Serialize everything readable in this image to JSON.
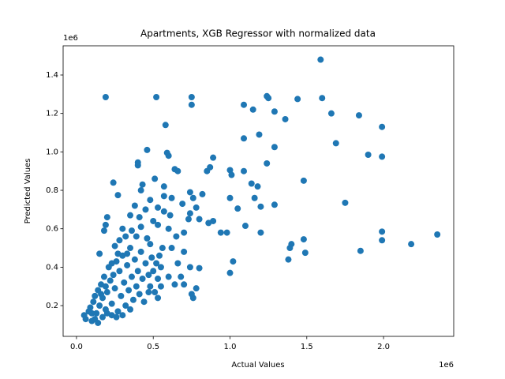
{
  "chart_data": {
    "type": "scatter",
    "title": "Apartments, XGB Regressor with normalized data",
    "x_label": "Actual Values",
    "y_label": "Predicted Values",
    "x_offset_label": "1e6",
    "y_offset_label": "1e6",
    "color": "#1f77b4",
    "xlim": [
      -87000,
      2457000
    ],
    "ylim": [
      40000,
      1552000
    ],
    "xticks": [
      {
        "value": 0,
        "label": "0.0"
      },
      {
        "value": 500000,
        "label": "0.5"
      },
      {
        "value": 1000000,
        "label": "1.0"
      },
      {
        "value": 1500000,
        "label": "1.5"
      },
      {
        "value": 2000000,
        "label": "2.0"
      }
    ],
    "yticks": [
      {
        "value": 200000,
        "label": "0.2"
      },
      {
        "value": 400000,
        "label": "0.4"
      },
      {
        "value": 600000,
        "label": "0.6"
      },
      {
        "value": 800000,
        "label": "0.8"
      },
      {
        "value": 1000000,
        "label": "1.0"
      },
      {
        "value": 1200000,
        "label": "1.2"
      },
      {
        "value": 1400000,
        "label": "1.4"
      }
    ],
    "x": [
      1590000,
      190000,
      520000,
      750000,
      750000,
      1240000,
      1250000,
      1440000,
      1600000,
      1090000,
      1150000,
      1290000,
      1360000,
      1660000,
      1840000,
      1990000,
      580000,
      1090000,
      1190000,
      1290000,
      1690000,
      460000,
      590000,
      600000,
      1900000,
      1990000,
      890000,
      1240000,
      850000,
      870000,
      1000000,
      1010000,
      1090000,
      1480000,
      1140000,
      1180000,
      1160000,
      1200000,
      1290000,
      1750000,
      1050000,
      1000000,
      1100000,
      1200000,
      1990000,
      1990000,
      2180000,
      2350000,
      1850000,
      1480000,
      1490000,
      1400000,
      1390000,
      1380000,
      1020000,
      1000000,
      800000,
      780000,
      750000,
      760000,
      730000,
      890000,
      940000,
      980000,
      240000,
      270000,
      400000,
      400000,
      430000,
      420000,
      510000,
      570000,
      640000,
      660000,
      570000,
      620000,
      480000,
      530000,
      450000,
      570000,
      610000,
      690000,
      740000,
      760000,
      780000,
      820000,
      740000,
      800000,
      860000,
      700000,
      650000,
      600000,
      530000,
      500000,
      380000,
      350000,
      410000,
      200000,
      190000,
      180000,
      150000,
      620000,
      560000,
      480000,
      700000,
      740000,
      660000,
      600000,
      680000,
      550000,
      640000,
      530000,
      470000,
      700000,
      50000,
      60000,
      80000,
      90000,
      100000,
      110000,
      120000,
      130000,
      140000,
      150000,
      160000,
      170000,
      180000,
      190000,
      200000,
      210000,
      220000,
      230000,
      240000,
      250000,
      260000,
      270000,
      280000,
      290000,
      300000,
      310000,
      320000,
      330000,
      340000,
      350000,
      360000,
      370000,
      380000,
      390000,
      400000,
      410000,
      420000,
      430000,
      440000,
      450000,
      460000,
      470000,
      480000,
      490000,
      500000,
      510000,
      520000,
      530000,
      540000,
      550000,
      120000,
      140000,
      100000,
      170000,
      200000,
      230000,
      260000,
      300000,
      350000,
      280000,
      320000,
      360000,
      250000,
      300000,
      390000,
      420000,
      330000,
      270000,
      230000,
      190000,
      160000
    ],
    "values": [
      1480000,
      1285000,
      1285000,
      1285000,
      1245000,
      1290000,
      1280000,
      1275000,
      1280000,
      1245000,
      1220000,
      1210000,
      1170000,
      1200000,
      1190000,
      1130000,
      1140000,
      1070000,
      1090000,
      1025000,
      1045000,
      1010000,
      995000,
      980000,
      985000,
      975000,
      970000,
      940000,
      900000,
      920000,
      905000,
      880000,
      900000,
      850000,
      835000,
      820000,
      760000,
      715000,
      725000,
      735000,
      705000,
      760000,
      615000,
      580000,
      585000,
      540000,
      520000,
      570000,
      485000,
      545000,
      475000,
      520000,
      500000,
      440000,
      430000,
      370000,
      395000,
      290000,
      260000,
      240000,
      650000,
      640000,
      580000,
      580000,
      840000,
      775000,
      930000,
      945000,
      830000,
      800000,
      860000,
      820000,
      910000,
      900000,
      770000,
      760000,
      750000,
      710000,
      700000,
      690000,
      670000,
      730000,
      790000,
      760000,
      710000,
      780000,
      680000,
      650000,
      630000,
      580000,
      560000,
      600000,
      620000,
      640000,
      720000,
      670000,
      660000,
      660000,
      620000,
      590000,
      470000,
      500000,
      500000,
      520000,
      480000,
      400000,
      420000,
      350000,
      350000,
      300000,
      310000,
      240000,
      270000,
      310000,
      150000,
      130000,
      170000,
      190000,
      120000,
      220000,
      250000,
      160000,
      280000,
      200000,
      310000,
      240000,
      350000,
      180000,
      270000,
      400000,
      330000,
      210000,
      360000,
      290000,
      430000,
      170000,
      380000,
      250000,
      460000,
      320000,
      200000,
      410000,
      280000,
      500000,
      350000,
      230000,
      440000,
      300000,
      380000,
      260000,
      480000,
      340000,
      220000,
      420000,
      550000,
      360000,
      300000,
      450000,
      380000,
      270000,
      420000,
      340000,
      460000,
      400000,
      130000,
      110000,
      160000,
      140000,
      160000,
      150000,
      140000,
      150000,
      180000,
      540000,
      560000,
      590000,
      510000,
      600000,
      560000,
      610000,
      470000,
      470000,
      420000,
      300000,
      260000
    ]
  }
}
